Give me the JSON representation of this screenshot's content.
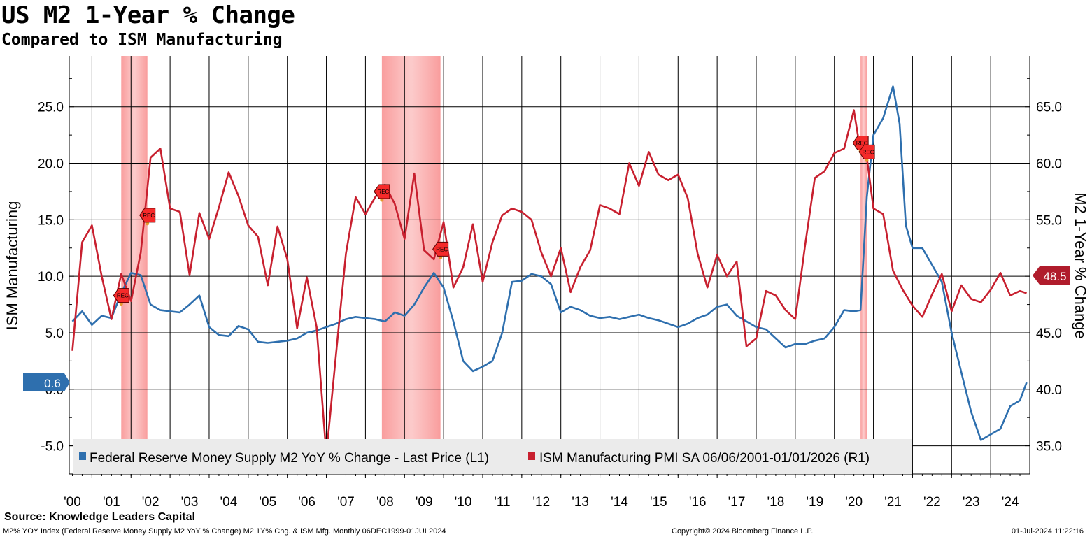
{
  "header": {
    "title": "US M2 1-Year % Change",
    "subtitle": "Compared to ISM Manufacturing"
  },
  "footer": {
    "source": "Source: Knowledge Leaders Capital",
    "description": "M2% YOY Index (Federal Reserve Money Supply M2 YoY % Change) M2 1Y% Chg. & ISM Mfg.  Monthly 06DEC1999-01JUL2024",
    "copyright": "Copyright© 2024 Bloomberg Finance L.P.",
    "timestamp": "01-Jul-2024 11:22:16"
  },
  "chart_data": {
    "type": "line",
    "title": "US M2 1-Year % Change",
    "subtitle": "Compared to ISM Manufacturing",
    "xlabel": "",
    "ylabel_left": "ISM Manufacturing",
    "ylabel_right": "M2 1-Year % Change",
    "x_range": [
      1999.92,
      2024.5
    ],
    "ylim_left": [
      -7.5,
      29.5
    ],
    "ylim_right": [
      32.5,
      69.5
    ],
    "yticks_left": [
      -5.0,
      0.0,
      5.0,
      10.0,
      15.0,
      20.0,
      25.0
    ],
    "yticks_left_labels": [
      "-5.0",
      "0.0",
      "5.0",
      "10.0",
      "15.0",
      "20.0",
      "25.0"
    ],
    "yticks_right": [
      35.0,
      40.0,
      45.0,
      50.0,
      55.0,
      60.0,
      65.0
    ],
    "yticks_right_labels": [
      "35.0",
      "40.0",
      "45.0",
      "50.0",
      "55.0",
      "60.0",
      "65.0"
    ],
    "x_tick_labels": [
      "'00",
      "'01",
      "'02",
      "'03",
      "'04",
      "'05",
      "'06",
      "'07",
      "'08",
      "'09",
      "'10",
      "'11",
      "'12",
      "'13",
      "'14",
      "'15",
      "'16",
      "'17",
      "'18",
      "'19",
      "'20",
      "'21",
      "'22",
      "'23",
      "'24"
    ],
    "x_tick_years": [
      2000,
      2001,
      2002,
      2003,
      2004,
      2005,
      2006,
      2007,
      2008,
      2009,
      2010,
      2011,
      2012,
      2013,
      2014,
      2015,
      2016,
      2017,
      2018,
      2019,
      2020,
      2021,
      2022,
      2023,
      2024
    ],
    "grid": true,
    "legend_position": "bottom",
    "recessions": [
      {
        "start": 2001.25,
        "end": 2001.92
      },
      {
        "start": 2007.92,
        "end": 2009.42
      },
      {
        "start": 2020.17,
        "end": 2020.33
      }
    ],
    "recession_label": "REC",
    "rec_markers": [
      {
        "series": "ism",
        "x": 2001.25,
        "y": 48.3
      },
      {
        "series": "m2",
        "x": 2001.92,
        "y": 15.4
      },
      {
        "series": "m2",
        "x": 2007.92,
        "y": 17.5
      },
      {
        "series": "ism",
        "x": 2009.42,
        "y": 52.4
      },
      {
        "series": "ism",
        "x": 2020.17,
        "y": 61.8
      },
      {
        "series": "m2",
        "x": 2020.33,
        "y": 21.0
      }
    ],
    "series": [
      {
        "name": "Federal Reserve Money Supply M2 YoY % Change - Last Price (L1)",
        "axis": "left",
        "color": "#2e6fae",
        "last_value": "0.6",
        "x": [
          2000.0,
          2000.25,
          2000.5,
          2000.75,
          2001.0,
          2001.25,
          2001.5,
          2001.75,
          2002.0,
          2002.25,
          2002.5,
          2002.75,
          2003.0,
          2003.25,
          2003.5,
          2003.75,
          2004.0,
          2004.25,
          2004.5,
          2004.75,
          2005.0,
          2005.25,
          2005.5,
          2005.75,
          2006.0,
          2006.25,
          2006.5,
          2006.75,
          2007.0,
          2007.25,
          2007.5,
          2007.75,
          2008.0,
          2008.25,
          2008.5,
          2008.75,
          2009.0,
          2009.25,
          2009.5,
          2009.75,
          2010.0,
          2010.25,
          2010.5,
          2010.75,
          2011.0,
          2011.25,
          2011.5,
          2011.75,
          2012.0,
          2012.25,
          2012.5,
          2012.75,
          2013.0,
          2013.25,
          2013.5,
          2013.75,
          2014.0,
          2014.25,
          2014.5,
          2014.75,
          2015.0,
          2015.25,
          2015.5,
          2015.75,
          2016.0,
          2016.25,
          2016.5,
          2016.75,
          2017.0,
          2017.25,
          2017.5,
          2017.75,
          2018.0,
          2018.25,
          2018.5,
          2018.75,
          2019.0,
          2019.25,
          2019.5,
          2019.75,
          2020.0,
          2020.17,
          2020.33,
          2020.5,
          2020.75,
          2021.0,
          2021.17,
          2021.33,
          2021.5,
          2021.75,
          2022.0,
          2022.25,
          2022.5,
          2022.75,
          2023.0,
          2023.25,
          2023.5,
          2023.75,
          2024.0,
          2024.25,
          2024.42
        ],
        "values": [
          6.0,
          6.9,
          5.7,
          6.5,
          6.3,
          8.5,
          10.3,
          10.1,
          7.5,
          7.0,
          6.9,
          6.8,
          7.5,
          8.3,
          5.5,
          4.8,
          4.7,
          5.6,
          5.3,
          4.2,
          4.1,
          4.2,
          4.3,
          4.5,
          5.0,
          5.2,
          5.5,
          5.8,
          6.2,
          6.4,
          6.3,
          6.2,
          6.0,
          6.8,
          6.5,
          7.5,
          9.0,
          10.3,
          9.0,
          6.0,
          2.5,
          1.6,
          2.0,
          2.5,
          5.0,
          9.5,
          9.6,
          10.2,
          10.0,
          9.3,
          6.8,
          7.3,
          7.0,
          6.5,
          6.3,
          6.4,
          6.2,
          6.4,
          6.6,
          6.3,
          6.1,
          5.8,
          5.5,
          5.8,
          6.3,
          6.6,
          7.3,
          7.5,
          6.5,
          6.0,
          5.5,
          5.3,
          4.5,
          3.7,
          4.0,
          4.0,
          4.3,
          4.5,
          5.5,
          7.0,
          6.9,
          7.0,
          17.0,
          22.5,
          24.0,
          26.8,
          23.5,
          14.5,
          12.5,
          12.5,
          11.0,
          9.5,
          5.0,
          1.5,
          -2.0,
          -4.5,
          -4.0,
          -3.5,
          -1.5,
          -1.0,
          0.6
        ]
      },
      {
        "name": "ISM Manufacturing PMI SA 06/06/2001-01/01/2026 (R1)",
        "axis": "right",
        "color": "#c8202f",
        "last_value": "48.5",
        "x": [
          2000.0,
          2000.25,
          2000.5,
          2000.75,
          2001.0,
          2001.25,
          2001.5,
          2001.75,
          2002.0,
          2002.25,
          2002.5,
          2002.75,
          2003.0,
          2003.25,
          2003.5,
          2003.75,
          2004.0,
          2004.25,
          2004.5,
          2004.75,
          2005.0,
          2005.25,
          2005.5,
          2005.75,
          2006.0,
          2006.25,
          2006.5,
          2006.75,
          2007.0,
          2007.25,
          2007.5,
          2007.75,
          2008.0,
          2008.25,
          2008.5,
          2008.75,
          2009.0,
          2009.25,
          2009.5,
          2009.75,
          2010.0,
          2010.25,
          2010.5,
          2010.75,
          2011.0,
          2011.25,
          2011.5,
          2011.75,
          2012.0,
          2012.25,
          2012.5,
          2012.75,
          2013.0,
          2013.25,
          2013.5,
          2013.75,
          2014.0,
          2014.25,
          2014.5,
          2014.75,
          2015.0,
          2015.25,
          2015.5,
          2015.75,
          2016.0,
          2016.25,
          2016.5,
          2016.75,
          2017.0,
          2017.25,
          2017.5,
          2017.75,
          2018.0,
          2018.25,
          2018.5,
          2018.75,
          2019.0,
          2019.25,
          2019.5,
          2019.75,
          2020.0,
          2020.17,
          2020.33,
          2020.5,
          2020.75,
          2021.0,
          2021.25,
          2021.5,
          2021.75,
          2022.0,
          2022.25,
          2022.5,
          2022.75,
          2023.0,
          2023.25,
          2023.5,
          2023.75,
          2024.0,
          2024.25,
          2024.42
        ],
        "values": [
          43.4,
          53.0,
          54.5,
          50.0,
          46.2,
          50.2,
          47.8,
          52.1,
          60.5,
          61.3,
          56.0,
          55.7,
          50.1,
          55.6,
          53.3,
          56.1,
          59.2,
          57.1,
          54.5,
          53.5,
          49.2,
          54.4,
          51.5,
          45.4,
          49.9,
          45.5,
          34.2,
          43.2,
          52.0,
          57.0,
          55.5,
          57.0,
          58.1,
          56.4,
          53.3,
          59.1,
          52.3,
          51.5,
          54.8,
          49.0,
          50.8,
          54.6,
          49.5,
          53.0,
          55.4,
          56.0,
          55.7,
          55.0,
          52.1,
          50.0,
          52.5,
          48.6,
          50.8,
          52.3,
          56.3,
          56.0,
          55.5,
          60.0,
          58.0,
          61.0,
          59.0,
          58.5,
          59.0,
          56.9,
          52.0,
          49.0,
          51.9,
          50.0,
          51.3,
          43.8,
          44.5,
          48.7,
          48.3,
          47.0,
          46.2,
          52.7,
          58.7,
          59.3,
          60.9,
          61.3,
          64.7,
          61.0,
          60.5,
          56.0,
          55.5,
          50.5,
          48.8,
          47.4,
          46.4,
          48.4,
          50.2,
          46.9,
          49.2,
          48.0,
          47.7,
          48.8,
          50.3,
          48.3,
          48.7,
          48.5
        ]
      }
    ]
  }
}
